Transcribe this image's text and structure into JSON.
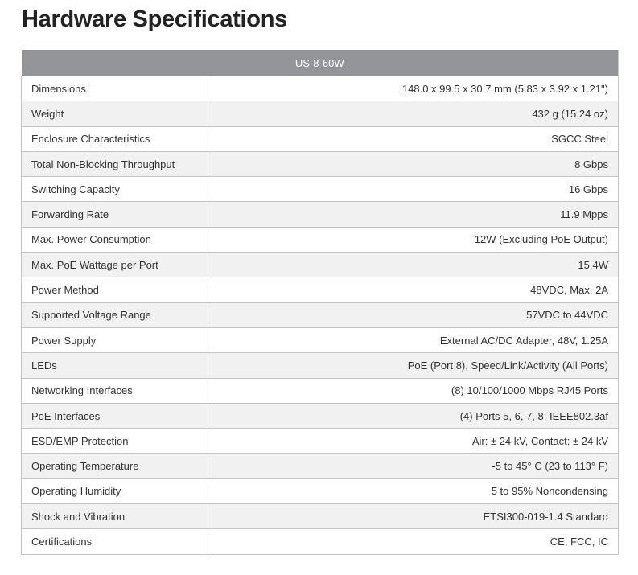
{
  "title": "Hardware Specifications",
  "model": "US-8-60W",
  "rows": [
    [
      "Dimensions",
      "148.0 x 99.5 x 30.7 mm (5.83 x 3.92 x 1.21\")"
    ],
    [
      "Weight",
      "432 g (15.24 oz)"
    ],
    [
      "Enclosure Characteristics",
      "SGCC Steel"
    ],
    [
      "Total Non-Blocking Throughput",
      "8 Gbps"
    ],
    [
      "Switching Capacity",
      "16 Gbps"
    ],
    [
      "Forwarding Rate",
      "11.9 Mpps"
    ],
    [
      "Max. Power Consumption",
      "12W (Excluding PoE Output)"
    ],
    [
      "Max. PoE Wattage per Port",
      "15.4W"
    ],
    [
      "Power Method",
      "48VDC, Max. 2A"
    ],
    [
      "Supported Voltage Range",
      "57VDC to 44VDC"
    ],
    [
      "Power Supply",
      "External AC/DC Adapter, 48V, 1.25A"
    ],
    [
      "LEDs",
      "PoE (Port 8), Speed/Link/Activity (All Ports)"
    ],
    [
      "Networking Interfaces",
      "(8) 10/100/1000 Mbps RJ45 Ports"
    ],
    [
      "PoE Interfaces",
      "(4) Ports 5, 6, 7, 8; IEEE802.3af"
    ],
    [
      "ESD/EMP Protection",
      "Air: ± 24 kV, Contact: ± 24 kV"
    ],
    [
      "Operating Temperature",
      "-5 to 45° C (23 to 113° F)"
    ],
    [
      "Operating Humidity",
      "5 to 95% Noncondensing"
    ],
    [
      "Shock and Vibration",
      "ETSI300-019-1.4 Standard"
    ],
    [
      "Certifications",
      "CE, FCC, IC"
    ]
  ]
}
